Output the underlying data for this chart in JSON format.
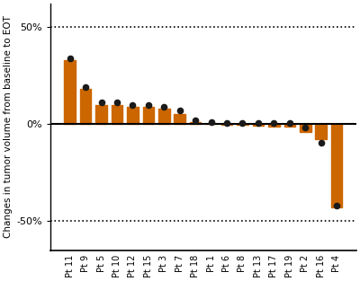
{
  "patients": [
    "Pt 11",
    "Pt 9",
    "Pt 5",
    "Pt 10",
    "Pt 12",
    "Pt 15",
    "Pt 3",
    "Pt 7",
    "Pt 18",
    "Pt 1",
    "Pt 6",
    "Pt 8",
    "Pt 13",
    "Pt 17",
    "Pt 19",
    "Pt 2",
    "Pt 16",
    "Pt 4"
  ],
  "bar_values": [
    33,
    18,
    10,
    10,
    9,
    9,
    8,
    5,
    1,
    0,
    -0.5,
    -0.5,
    -1,
    -1.5,
    -1.5,
    -4,
    -8,
    -43
  ],
  "dot_values": [
    34,
    19,
    11,
    11,
    10,
    10,
    9,
    7,
    2,
    1,
    0.5,
    0.5,
    0.5,
    0.5,
    0.5,
    -2,
    -9.5,
    -42
  ],
  "bar_color": "#CC6600",
  "dot_color": "#1a1a1a",
  "ylabel": "Changes in tumor volume from baseline to EOT",
  "ylim": [
    -65,
    62
  ],
  "yticks": [
    -50,
    0,
    50
  ],
  "yticklabels": [
    "-50%",
    "0%",
    "50%"
  ],
  "dotted_lines": [
    50,
    -50
  ],
  "bar_width": 0.72,
  "dot_size": 20,
  "background_color": "#ffffff",
  "spine_color": "#000000",
  "xtick_fontsize": 7,
  "ytick_fontsize": 8,
  "ylabel_fontsize": 7.5
}
